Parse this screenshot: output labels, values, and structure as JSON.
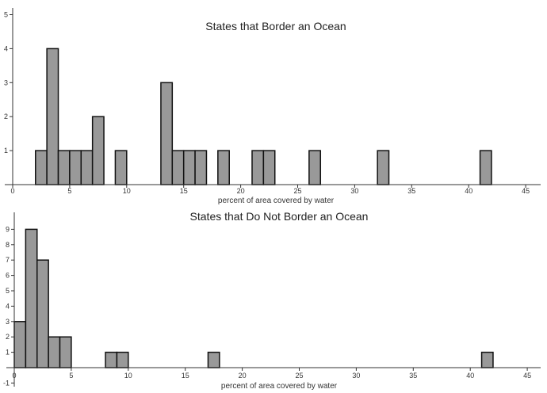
{
  "colors": {
    "bar_fill": "#999999",
    "bar_stroke": "#111111",
    "axis": "#333333"
  },
  "chart_data": [
    {
      "type": "bar",
      "title": "States that Border an Ocean",
      "xlabel": "percent of area covered by water",
      "ylabel": "",
      "bin_width": 1,
      "xlim": [
        0,
        47
      ],
      "ylim": [
        0,
        5
      ],
      "x_ticks": [
        0,
        5,
        10,
        15,
        20,
        25,
        30,
        35,
        40,
        45
      ],
      "y_ticks": [
        1,
        2,
        3,
        4,
        5
      ],
      "x": [
        2,
        3,
        4,
        5,
        6,
        7,
        9,
        13,
        14,
        15,
        16,
        18,
        21,
        22,
        26,
        32,
        41
      ],
      "values": [
        1,
        4,
        1,
        1,
        1,
        2,
        1,
        3,
        1,
        1,
        1,
        1,
        1,
        1,
        1,
        1,
        1
      ],
      "grid": false
    },
    {
      "type": "bar",
      "title": "States that Do Not Border an Ocean",
      "xlabel": "percent of area covered by water",
      "ylabel": "",
      "bin_width": 1,
      "xlim": [
        0,
        47
      ],
      "ylim": [
        -1,
        9
      ],
      "x_ticks": [
        0,
        5,
        10,
        15,
        20,
        25,
        30,
        35,
        40,
        45
      ],
      "y_ticks": [
        -1,
        1,
        2,
        3,
        4,
        5,
        6,
        7,
        8,
        9
      ],
      "x": [
        0,
        1,
        2,
        3,
        4,
        8,
        9,
        17,
        41
      ],
      "values": [
        3,
        9,
        7,
        2,
        2,
        1,
        1,
        1,
        1
      ],
      "grid": false
    }
  ]
}
